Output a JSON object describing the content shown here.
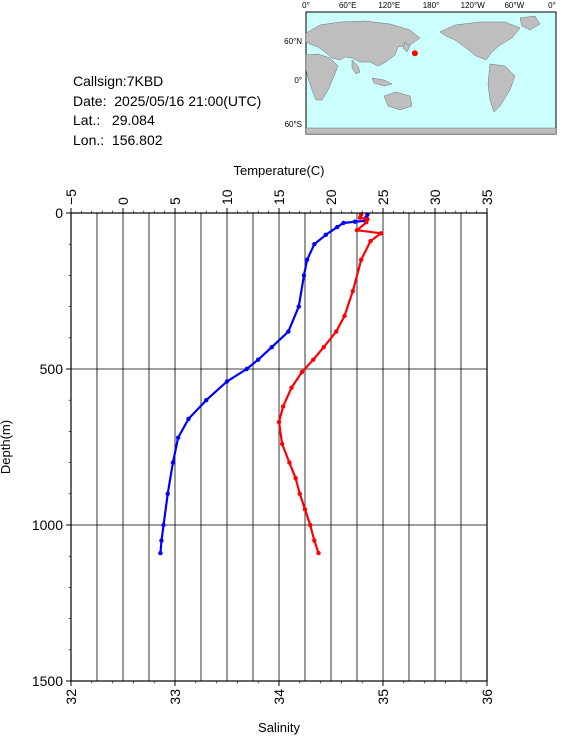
{
  "info": {
    "callsign": "Callsign:7KBD",
    "date": "Date:  2025/05/16 21:00(UTC)",
    "lat": "Lat.:   29.084",
    "lon": "Lon.:  156.802"
  },
  "map": {
    "top_labels": [
      "0°",
      "60°E",
      "120°E",
      "180°",
      "120°W",
      "60°W",
      "0°"
    ],
    "right_labels": [
      "60°N",
      "0°",
      "60°S"
    ],
    "marker": {
      "lat": 29.084,
      "lon": 156.802,
      "color": "#ff0000"
    },
    "ocean_color": "#ccffff",
    "land_color": "#bebebe"
  },
  "chart_data": {
    "type": "line",
    "title": "",
    "xlabel_top": "Temperature(C)",
    "xlabel_bottom": "Salinity",
    "ylabel": "Depth(m)",
    "temperature_ticks": [
      "−5",
      "0",
      "5",
      "10",
      "15",
      "20",
      "25",
      "30",
      "35"
    ],
    "salinity_ticks": [
      "32",
      "33",
      "34",
      "35",
      "36"
    ],
    "depth_ticks": [
      "0",
      "500",
      "1000",
      "1500"
    ],
    "temperature_range": [
      -5,
      35
    ],
    "salinity_range": [
      32,
      36
    ],
    "depth_range": [
      0,
      1500
    ],
    "grid": true,
    "series": [
      {
        "name": "",
        "quantity": "temperature",
        "color": "#0000ff",
        "points": [
          [
            23.5,
            5
          ],
          [
            23.4,
            15
          ],
          [
            23.3,
            25
          ],
          [
            22.3,
            28
          ],
          [
            21.2,
            32
          ],
          [
            20.6,
            45
          ],
          [
            19.5,
            70
          ],
          [
            18.4,
            100
          ],
          [
            17.7,
            150
          ],
          [
            17.4,
            200
          ],
          [
            16.9,
            300
          ],
          [
            15.9,
            380
          ],
          [
            14.3,
            430
          ],
          [
            13.0,
            470
          ],
          [
            11.9,
            500
          ],
          [
            10.0,
            540
          ],
          [
            8.0,
            600
          ],
          [
            6.3,
            660
          ],
          [
            5.3,
            720
          ],
          [
            4.8,
            800
          ],
          [
            4.3,
            900
          ],
          [
            3.9,
            1000
          ],
          [
            3.7,
            1050
          ],
          [
            3.6,
            1090
          ]
        ]
      },
      {
        "name": "",
        "quantity": "salinity",
        "color": "#ff0000",
        "points": [
          [
            34.79,
            5
          ],
          [
            34.78,
            15
          ],
          [
            34.85,
            20
          ],
          [
            34.84,
            30
          ],
          [
            34.75,
            55
          ],
          [
            34.98,
            65
          ],
          [
            34.88,
            90
          ],
          [
            34.79,
            150
          ],
          [
            34.71,
            250
          ],
          [
            34.63,
            330
          ],
          [
            34.55,
            380
          ],
          [
            34.43,
            430
          ],
          [
            34.33,
            470
          ],
          [
            34.22,
            510
          ],
          [
            34.12,
            560
          ],
          [
            34.04,
            620
          ],
          [
            34.0,
            670
          ],
          [
            34.03,
            740
          ],
          [
            34.1,
            800
          ],
          [
            34.16,
            850
          ],
          [
            34.2,
            900
          ],
          [
            34.25,
            950
          ],
          [
            34.3,
            1000
          ],
          [
            34.34,
            1050
          ],
          [
            34.38,
            1090
          ]
        ]
      }
    ]
  }
}
